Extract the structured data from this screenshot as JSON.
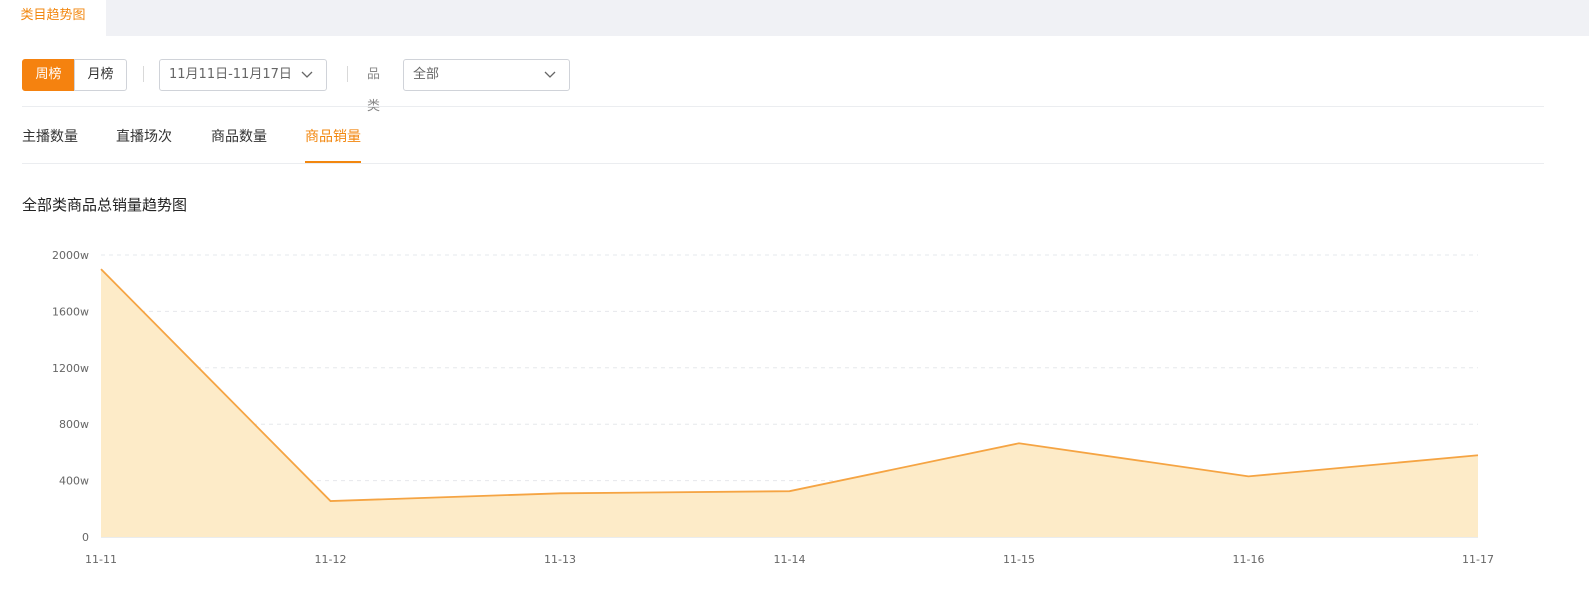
{
  "top_tabs": [
    {
      "label": "类目趋势图"
    }
  ],
  "filters": {
    "period_week": "周榜",
    "period_month": "月榜",
    "date_range": "11月11日-11月17日",
    "category_label": "品类",
    "category_value": "全部"
  },
  "metric_tabs": [
    {
      "label": "主播数量",
      "active": false
    },
    {
      "label": "直播场次",
      "active": false
    },
    {
      "label": "商品数量",
      "active": false
    },
    {
      "label": "商品销量",
      "active": true
    }
  ],
  "icons": {
    "dropdown": "chevron-down-icon"
  },
  "colors": {
    "accent": "#f5820f",
    "area_fill": "#fdebc8",
    "line": "#f5a443"
  },
  "chart_data": {
    "type": "area",
    "title": "全部类商品总销量趋势图",
    "categories": [
      "11-11",
      "11-12",
      "11-13",
      "11-14",
      "11-15",
      "11-16",
      "11-17"
    ],
    "values": [
      1900,
      255,
      310,
      325,
      665,
      430,
      580
    ],
    "y_ticks": [
      "0",
      "400w",
      "800w",
      "1200w",
      "1600w",
      "2000w"
    ],
    "ylim": [
      0,
      2000
    ],
    "unit": "w",
    "grid": true,
    "legend": "none"
  }
}
